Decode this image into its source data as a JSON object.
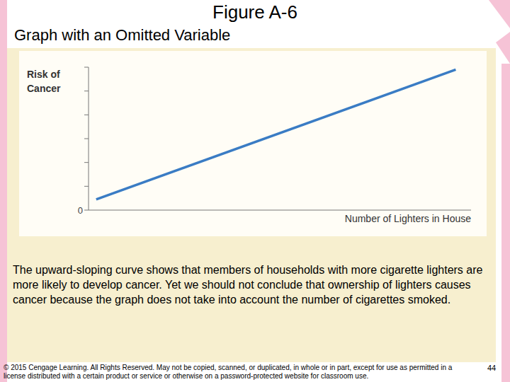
{
  "chart_data": {
    "type": "line",
    "title": "Figure A-6",
    "subtitle": "Graph with an Omitted Variable",
    "x_label": "Number of Lighters in House",
    "y_label": "Risk of\nCancer",
    "x": [
      0.2,
      9.6
    ],
    "values": [
      0.45,
      5.9
    ],
    "color": "#3a7cc4",
    "xlim": [
      0,
      10
    ],
    "ylim": [
      0,
      6
    ],
    "yticks": [
      0,
      {
        "value": 1,
        "label": null
      },
      {
        "value": 2,
        "label": null
      },
      {
        "value": 3,
        "label": null
      },
      {
        "value": 4,
        "label": null
      },
      {
        "value": 5,
        "label": null
      },
      {
        "value": 6,
        "label": null
      }
    ],
    "tick_labels": "y",
    "grid": false
  },
  "caption": "The upward-sloping curve shows that members of households with more cigarette lighters are more likely to develop cancer. Yet we should not conclude that ownership of lighters causes cancer because the graph does not take into account the number of cigarettes smoked.",
  "copyright": "© 2015 Cengage Learning. All Rights Reserved. May not be copied, scanned, or duplicated, in whole or in part, except for use as permitted in a license distributed with a certain product or service or otherwise on a password-protected website for classroom use.",
  "page": "44"
}
